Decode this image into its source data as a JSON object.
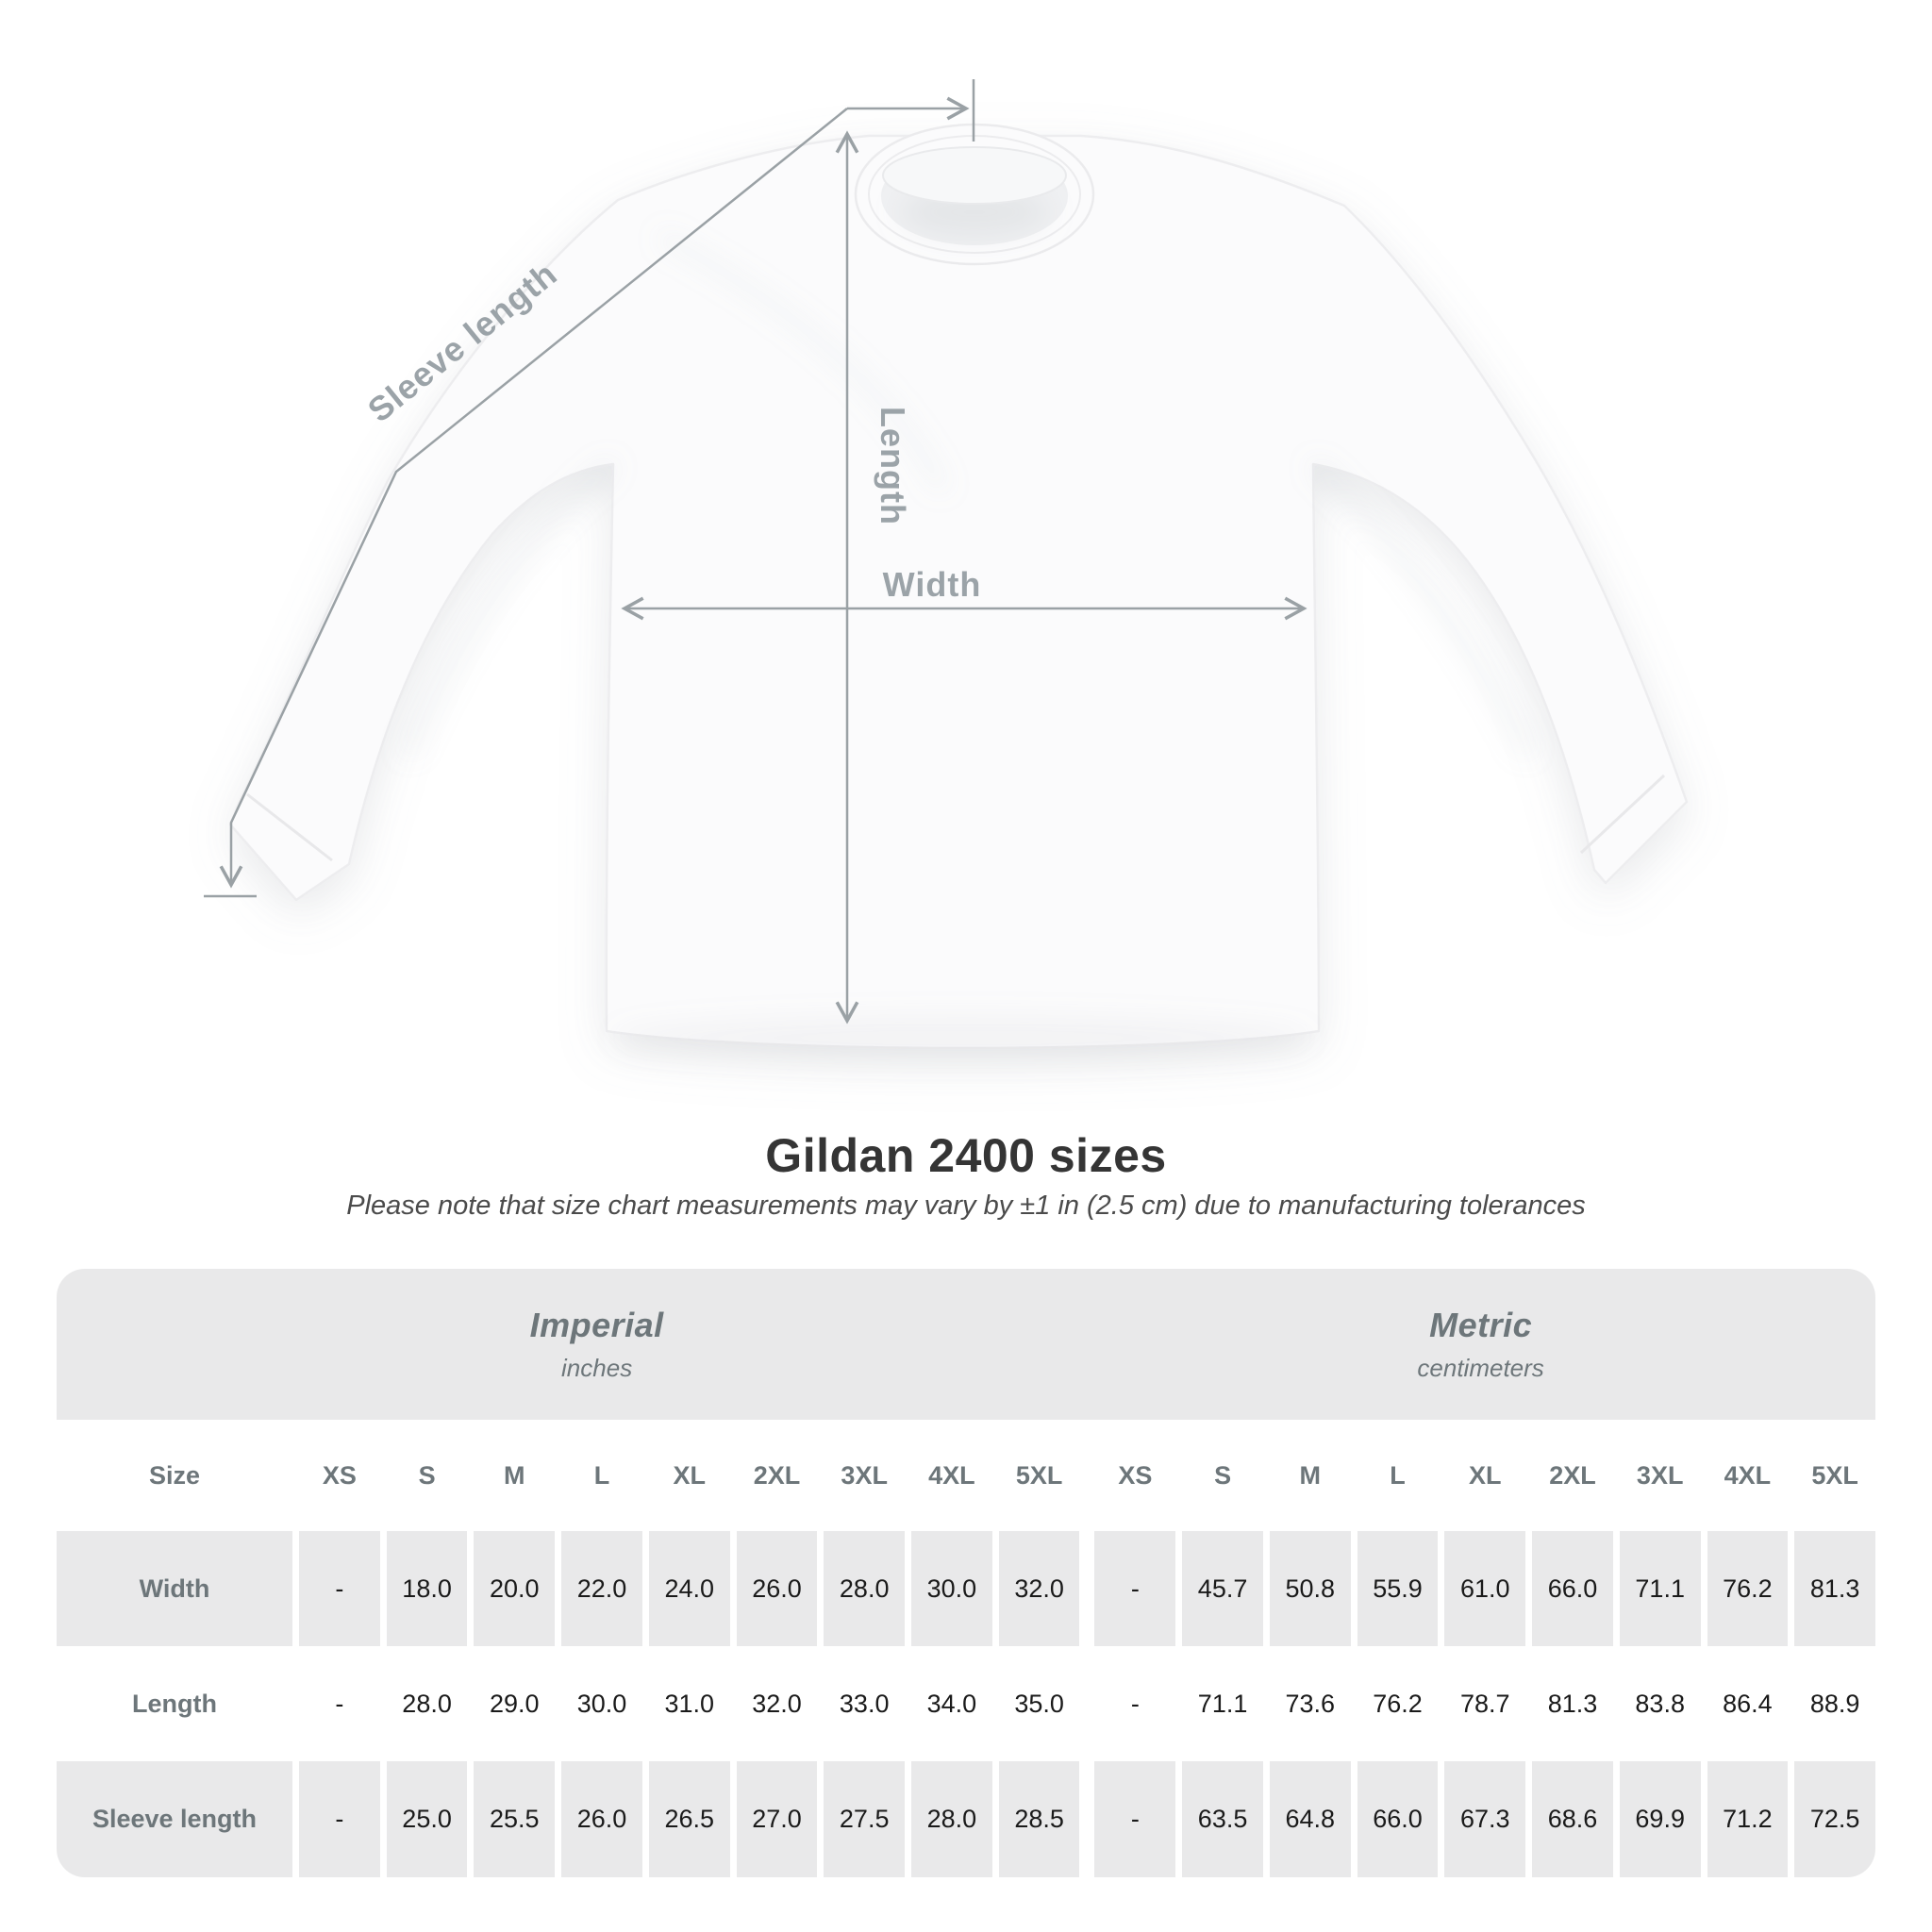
{
  "diagram": {
    "labels": {
      "sleeve_length": "Sleeve length",
      "length": "Length",
      "width": "Width"
    },
    "colors": {
      "annotation_line": "#9aa1a5",
      "annotation_text": "#9ba3a8",
      "fabric": "#fbfbfc",
      "fabric_stroke": "#ededef"
    }
  },
  "title": "Gildan 2400 sizes",
  "subtitle": "Please note that size chart measurements may vary by ±1 in (2.5 cm) due to manufacturing tolerances",
  "table": {
    "size_header": "Size",
    "sections": [
      {
        "name": "Imperial",
        "unit": "inches"
      },
      {
        "name": "Metric",
        "unit": "centimeters"
      }
    ],
    "sizes": [
      "XS",
      "S",
      "M",
      "L",
      "XL",
      "2XL",
      "3XL",
      "4XL",
      "5XL"
    ],
    "rows": [
      {
        "label": "Width",
        "imperial": [
          "-",
          "18.0",
          "20.0",
          "22.0",
          "24.0",
          "26.0",
          "28.0",
          "30.0",
          "32.0"
        ],
        "metric": [
          "-",
          "45.7",
          "50.8",
          "55.9",
          "61.0",
          "66.0",
          "71.1",
          "76.2",
          "81.3"
        ]
      },
      {
        "label": "Length",
        "imperial": [
          "-",
          "28.0",
          "29.0",
          "30.0",
          "31.0",
          "32.0",
          "33.0",
          "34.0",
          "35.0"
        ],
        "metric": [
          "-",
          "71.1",
          "73.6",
          "76.2",
          "78.7",
          "81.3",
          "83.8",
          "86.4",
          "88.9"
        ]
      },
      {
        "label": "Sleeve length",
        "imperial": [
          "-",
          "25.0",
          "25.5",
          "26.0",
          "26.5",
          "27.0",
          "27.5",
          "28.0",
          "28.5"
        ],
        "metric": [
          "-",
          "63.5",
          "64.8",
          "66.0",
          "67.3",
          "68.6",
          "69.9",
          "71.2",
          "72.5"
        ]
      }
    ],
    "colors": {
      "band_bg": "#e9e9ea",
      "row_alt_bg": "#e9e9ea",
      "header_text": "#6d767a",
      "value_text": "#1a1a1a"
    }
  }
}
